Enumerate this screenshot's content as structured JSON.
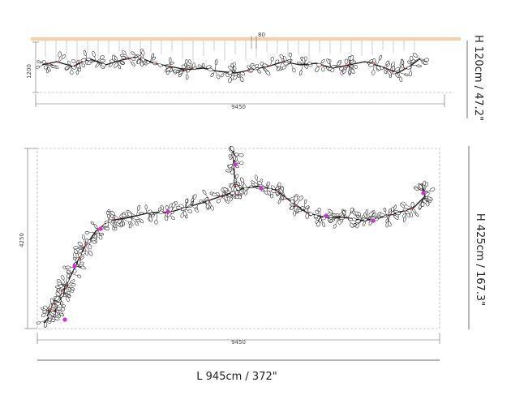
{
  "front_view": {
    "width_label": "9450",
    "height_label": "1200",
    "canopy_label": "80",
    "height_caption": "H 120cm / 47.2\""
  },
  "top_view": {
    "width_label": "9450",
    "height_label": "4250",
    "height_caption": "H 425cm / 167.3\""
  },
  "length_caption": "L 945cm / 372\"",
  "colors": {
    "canopy": "#f6cfa8",
    "branch": "#1a1a1a",
    "accent": "#cc33cc",
    "bud": "#cc3333"
  }
}
